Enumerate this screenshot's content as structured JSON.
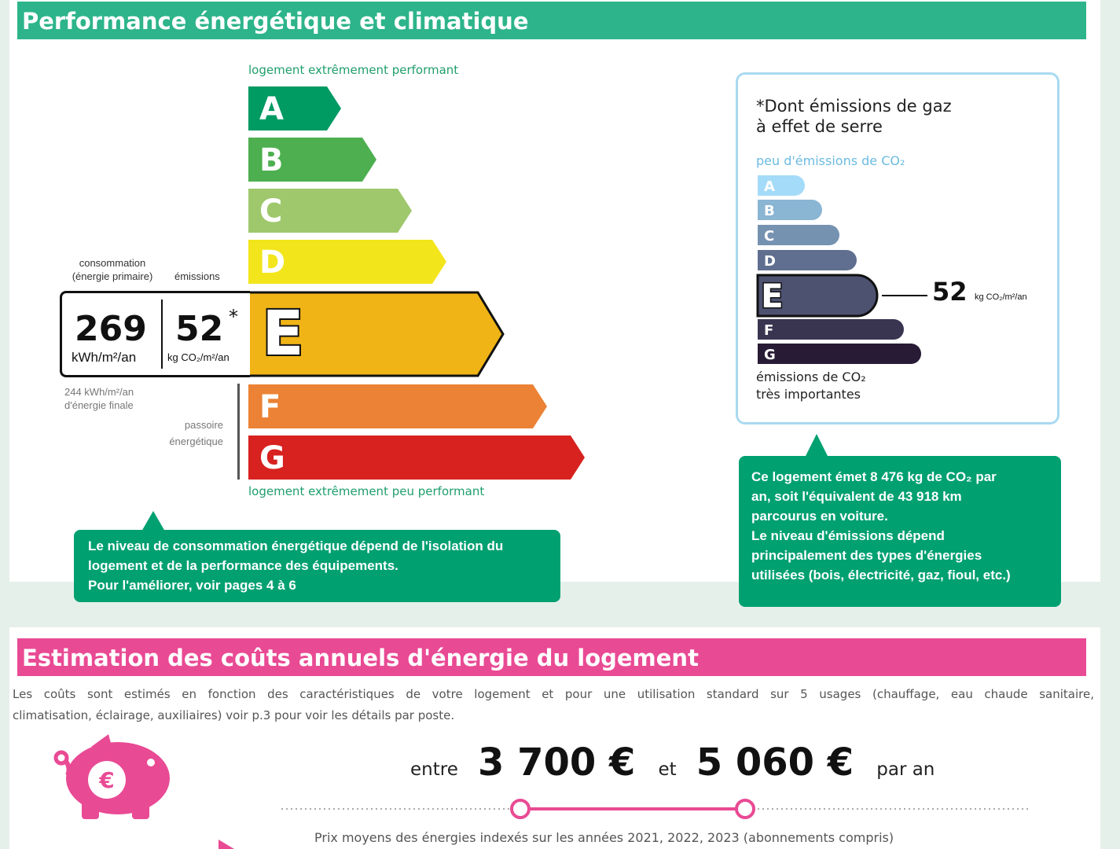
{
  "energy": {
    "title": "Performance énergétique et climatique",
    "top_caption": "logement extrêmement performant",
    "bottom_caption": "logement extrêmement peu performant",
    "classes": [
      {
        "letter": "A",
        "color": "#009a63"
      },
      {
        "letter": "B",
        "color": "#4daf4f"
      },
      {
        "letter": "C",
        "color": "#9fc86d"
      },
      {
        "letter": "D",
        "color": "#f2e51c"
      },
      {
        "letter": "E",
        "color": "#f0b417"
      },
      {
        "letter": "F",
        "color": "#eb8235"
      },
      {
        "letter": "G",
        "color": "#d7221f"
      }
    ],
    "current_class": "E",
    "consumption_label_line1": "consommation",
    "consumption_label_line2": "(énergie primaire)",
    "emissions_label": "émissions",
    "consumption_value": "269",
    "consumption_unit": "kWh/m²/an",
    "emissions_value": "52",
    "emissions_star": "*",
    "emissions_unit": "kg CO₂/m²/an",
    "final_energy_line1": "244 kWh/m²/an",
    "final_energy_line2": "d'énergie finale",
    "passoire_line1": "passoire",
    "passoire_line2": "énergétique",
    "note_lines": [
      "Le niveau de consommation énergétique dépend de l'isolation du",
      "logement et de la performance des équipements.",
      "Pour l'améliorer, voir pages 4 à 6"
    ]
  },
  "ges": {
    "title_line1": "*Dont émissions de gaz",
    "title_line2": "à effet de serre",
    "top_caption": "peu d'émissions de CO₂",
    "bottom_caption_line1": "émissions de CO₂",
    "bottom_caption_line2": "très importantes",
    "classes": [
      {
        "letter": "A",
        "color": "#a4dbf8"
      },
      {
        "letter": "B",
        "color": "#8ab5d3"
      },
      {
        "letter": "C",
        "color": "#7692b1"
      },
      {
        "letter": "D",
        "color": "#606f8f"
      },
      {
        "letter": "E",
        "color": "#4d5271"
      },
      {
        "letter": "F",
        "color": "#393551"
      },
      {
        "letter": "G",
        "color": "#281b35"
      }
    ],
    "current_class": "E",
    "value": "52",
    "unit": "kg CO₂/m²/an",
    "note_lines": [
      "Ce logement émet 8 476 kg de CO₂ par",
      "an, soit l'équivalent de 43 918 km",
      "parcourus en voiture.",
      "Le niveau d'émissions dépend",
      "principalement des types d'énergies",
      "utilisées (bois, électricité, gaz, fioul, etc.)"
    ]
  },
  "costs": {
    "title": "Estimation des coûts annuels d'énergie du logement",
    "description_line1": "Les coûts sont estimés en fonction des caractéristiques de votre logement et pour une utilisation standard sur 5 usages (chauffage, eau chaude sanitaire,",
    "description_line2": "climatisation, éclairage, auxiliaires) voir p.3 pour voir les détails par poste.",
    "between": "entre",
    "min": "3 700 €",
    "and": "et",
    "max": "5 060 €",
    "per_year": "par an",
    "prices_note": "Prix moyens des énergies indexés sur les années 2021, 2022, 2023 (abonnements compris)",
    "icon": "piggy-bank-euro-icon"
  },
  "colors": {
    "green": "#2db48a",
    "pink": "#e94a94",
    "note_green": "#00a071"
  }
}
